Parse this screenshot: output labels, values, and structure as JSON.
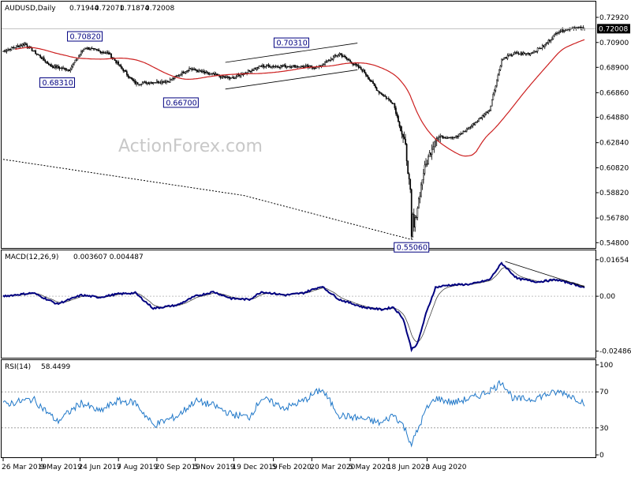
{
  "chart_data": [
    {
      "type": "candlestick",
      "symbol": "AUDUSD",
      "timeframe": "Daily",
      "header": {
        "label": "AUDUSD,Daily",
        "open": "0.71944",
        "high": "0.72071",
        "low": "0.71874",
        "close": "0.72008"
      },
      "current_price": "0.72008",
      "watermark": "ActionForex.com",
      "ylim": [
        0.545,
        0.733
      ],
      "y_ticks": [
        "0.72920",
        "0.70900",
        "0.68900",
        "0.66860",
        "0.64880",
        "0.62840",
        "0.60820",
        "0.58820",
        "0.56780",
        "0.54800"
      ],
      "annotations": [
        {
          "label": "0.70820",
          "price": 0.7082,
          "date_index": 68
        },
        {
          "label": "0.68310",
          "price": 0.6831,
          "date_index": 45
        },
        {
          "label": "0.66700",
          "price": 0.667,
          "date_index": 148
        },
        {
          "label": "0.70310",
          "price": 0.7031,
          "date_index": 240
        },
        {
          "label": "0.55060",
          "price": 0.5506,
          "date_index": 340
        }
      ],
      "channel": {
        "upper": [
          [
            185,
            0.693
          ],
          [
            295,
            0.7085
          ]
        ],
        "lower": [
          [
            185,
            0.6715
          ],
          [
            295,
            0.687
          ]
        ]
      },
      "series": [
        {
          "name": "MA (55)",
          "color": "#cc1f1f"
        },
        {
          "name": "MA (200)",
          "color": "#000000",
          "style": "dotted"
        }
      ],
      "close_anchors": [
        [
          0,
          0.702
        ],
        [
          18,
          0.708
        ],
        [
          40,
          0.69
        ],
        [
          55,
          0.687
        ],
        [
          68,
          0.705
        ],
        [
          88,
          0.7
        ],
        [
          110,
          0.676
        ],
        [
          138,
          0.678
        ],
        [
          155,
          0.688
        ],
        [
          170,
          0.684
        ],
        [
          190,
          0.68
        ],
        [
          215,
          0.69
        ],
        [
          240,
          0.69
        ],
        [
          262,
          0.689
        ],
        [
          280,
          0.7
        ],
        [
          300,
          0.686
        ],
        [
          312,
          0.67
        ],
        [
          325,
          0.66
        ],
        [
          335,
          0.625
        ],
        [
          342,
          0.56
        ],
        [
          350,
          0.605
        ],
        [
          360,
          0.633
        ],
        [
          378,
          0.633
        ],
        [
          390,
          0.642
        ],
        [
          405,
          0.655
        ],
        [
          415,
          0.695
        ],
        [
          425,
          0.7
        ],
        [
          438,
          0.7
        ],
        [
          450,
          0.706
        ],
        [
          462,
          0.718
        ],
        [
          475,
          0.721
        ],
        [
          484,
          0.72
        ]
      ]
    },
    {
      "type": "line",
      "name": "MACD(12,26,9) 0.003607 0.004487",
      "title": "MACD(12,26,9)",
      "values_text": "0.003607 0.004487",
      "y_ticks": [
        "0.01654",
        "0.00",
        "-0.02486"
      ],
      "ylim": [
        -0.0275,
        0.019
      ],
      "series": [
        {
          "name": "MACD",
          "color": "#000080"
        },
        {
          "name": "Signal",
          "color": "#000000"
        }
      ],
      "macd_anchors": [
        [
          0,
          0.0
        ],
        [
          25,
          0.0015
        ],
        [
          45,
          -0.0035
        ],
        [
          65,
          0.0005
        ],
        [
          80,
          -0.0005
        ],
        [
          95,
          0.001
        ],
        [
          110,
          0.0015
        ],
        [
          125,
          -0.0055
        ],
        [
          145,
          -0.004
        ],
        [
          160,
          0.0
        ],
        [
          175,
          0.002
        ],
        [
          190,
          -0.001
        ],
        [
          205,
          -0.0015
        ],
        [
          215,
          0.002
        ],
        [
          235,
          0.0005
        ],
        [
          250,
          0.0015
        ],
        [
          265,
          0.0045
        ],
        [
          280,
          -0.0015
        ],
        [
          300,
          -0.005
        ],
        [
          315,
          -0.006
        ],
        [
          325,
          -0.005
        ],
        [
          333,
          -0.01
        ],
        [
          340,
          -0.024
        ],
        [
          345,
          -0.0215
        ],
        [
          352,
          -0.008
        ],
        [
          360,
          0.004
        ],
        [
          370,
          0.005
        ],
        [
          390,
          0.0055
        ],
        [
          405,
          0.0075
        ],
        [
          415,
          0.015
        ],
        [
          428,
          0.008
        ],
        [
          445,
          0.0065
        ],
        [
          460,
          0.0075
        ],
        [
          472,
          0.006
        ],
        [
          484,
          0.004
        ]
      ],
      "trendline": [
        [
          418,
          0.0158
        ],
        [
          484,
          0.0043
        ]
      ]
    },
    {
      "type": "line",
      "name": "RSI(14) 58.4499",
      "title": "RSI(14)",
      "value_text": "58.4499",
      "y_ticks": [
        "100",
        "70",
        "30",
        "0"
      ],
      "levels": [
        70,
        30
      ],
      "ylim": [
        0,
        100
      ],
      "series": [
        {
          "name": "RSI",
          "color": "#1f77c8"
        }
      ],
      "rsi_anchors": [
        [
          0,
          56
        ],
        [
          25,
          62
        ],
        [
          45,
          37
        ],
        [
          65,
          58
        ],
        [
          80,
          48
        ],
        [
          95,
          60
        ],
        [
          110,
          58
        ],
        [
          125,
          33
        ],
        [
          145,
          43
        ],
        [
          160,
          60
        ],
        [
          175,
          55
        ],
        [
          190,
          45
        ],
        [
          205,
          42
        ],
        [
          215,
          63
        ],
        [
          235,
          52
        ],
        [
          250,
          60
        ],
        [
          265,
          73
        ],
        [
          280,
          44
        ],
        [
          300,
          40
        ],
        [
          315,
          35
        ],
        [
          325,
          45
        ],
        [
          333,
          33
        ],
        [
          340,
          12
        ],
        [
          345,
          27
        ],
        [
          352,
          50
        ],
        [
          360,
          63
        ],
        [
          375,
          58
        ],
        [
          395,
          65
        ],
        [
          410,
          75
        ],
        [
          415,
          82
        ],
        [
          425,
          62
        ],
        [
          440,
          62
        ],
        [
          455,
          68
        ],
        [
          465,
          70
        ],
        [
          475,
          64
        ],
        [
          484,
          58
        ]
      ]
    }
  ],
  "x_axis": {
    "labels": [
      "26 Mar 2019",
      "9 May 2019",
      "24 Jun 2019",
      "7 Aug 2019",
      "20 Sep 2019",
      "5 Nov 2019",
      "19 Dec 2019",
      "5 Feb 2020",
      "20 Mar 2020",
      "5 May 2020",
      "18 Jun 2020",
      "3 Aug 2020"
    ],
    "label_index": [
      0,
      32,
      64,
      96,
      128,
      160,
      192,
      225,
      257,
      289,
      321,
      353
    ]
  }
}
